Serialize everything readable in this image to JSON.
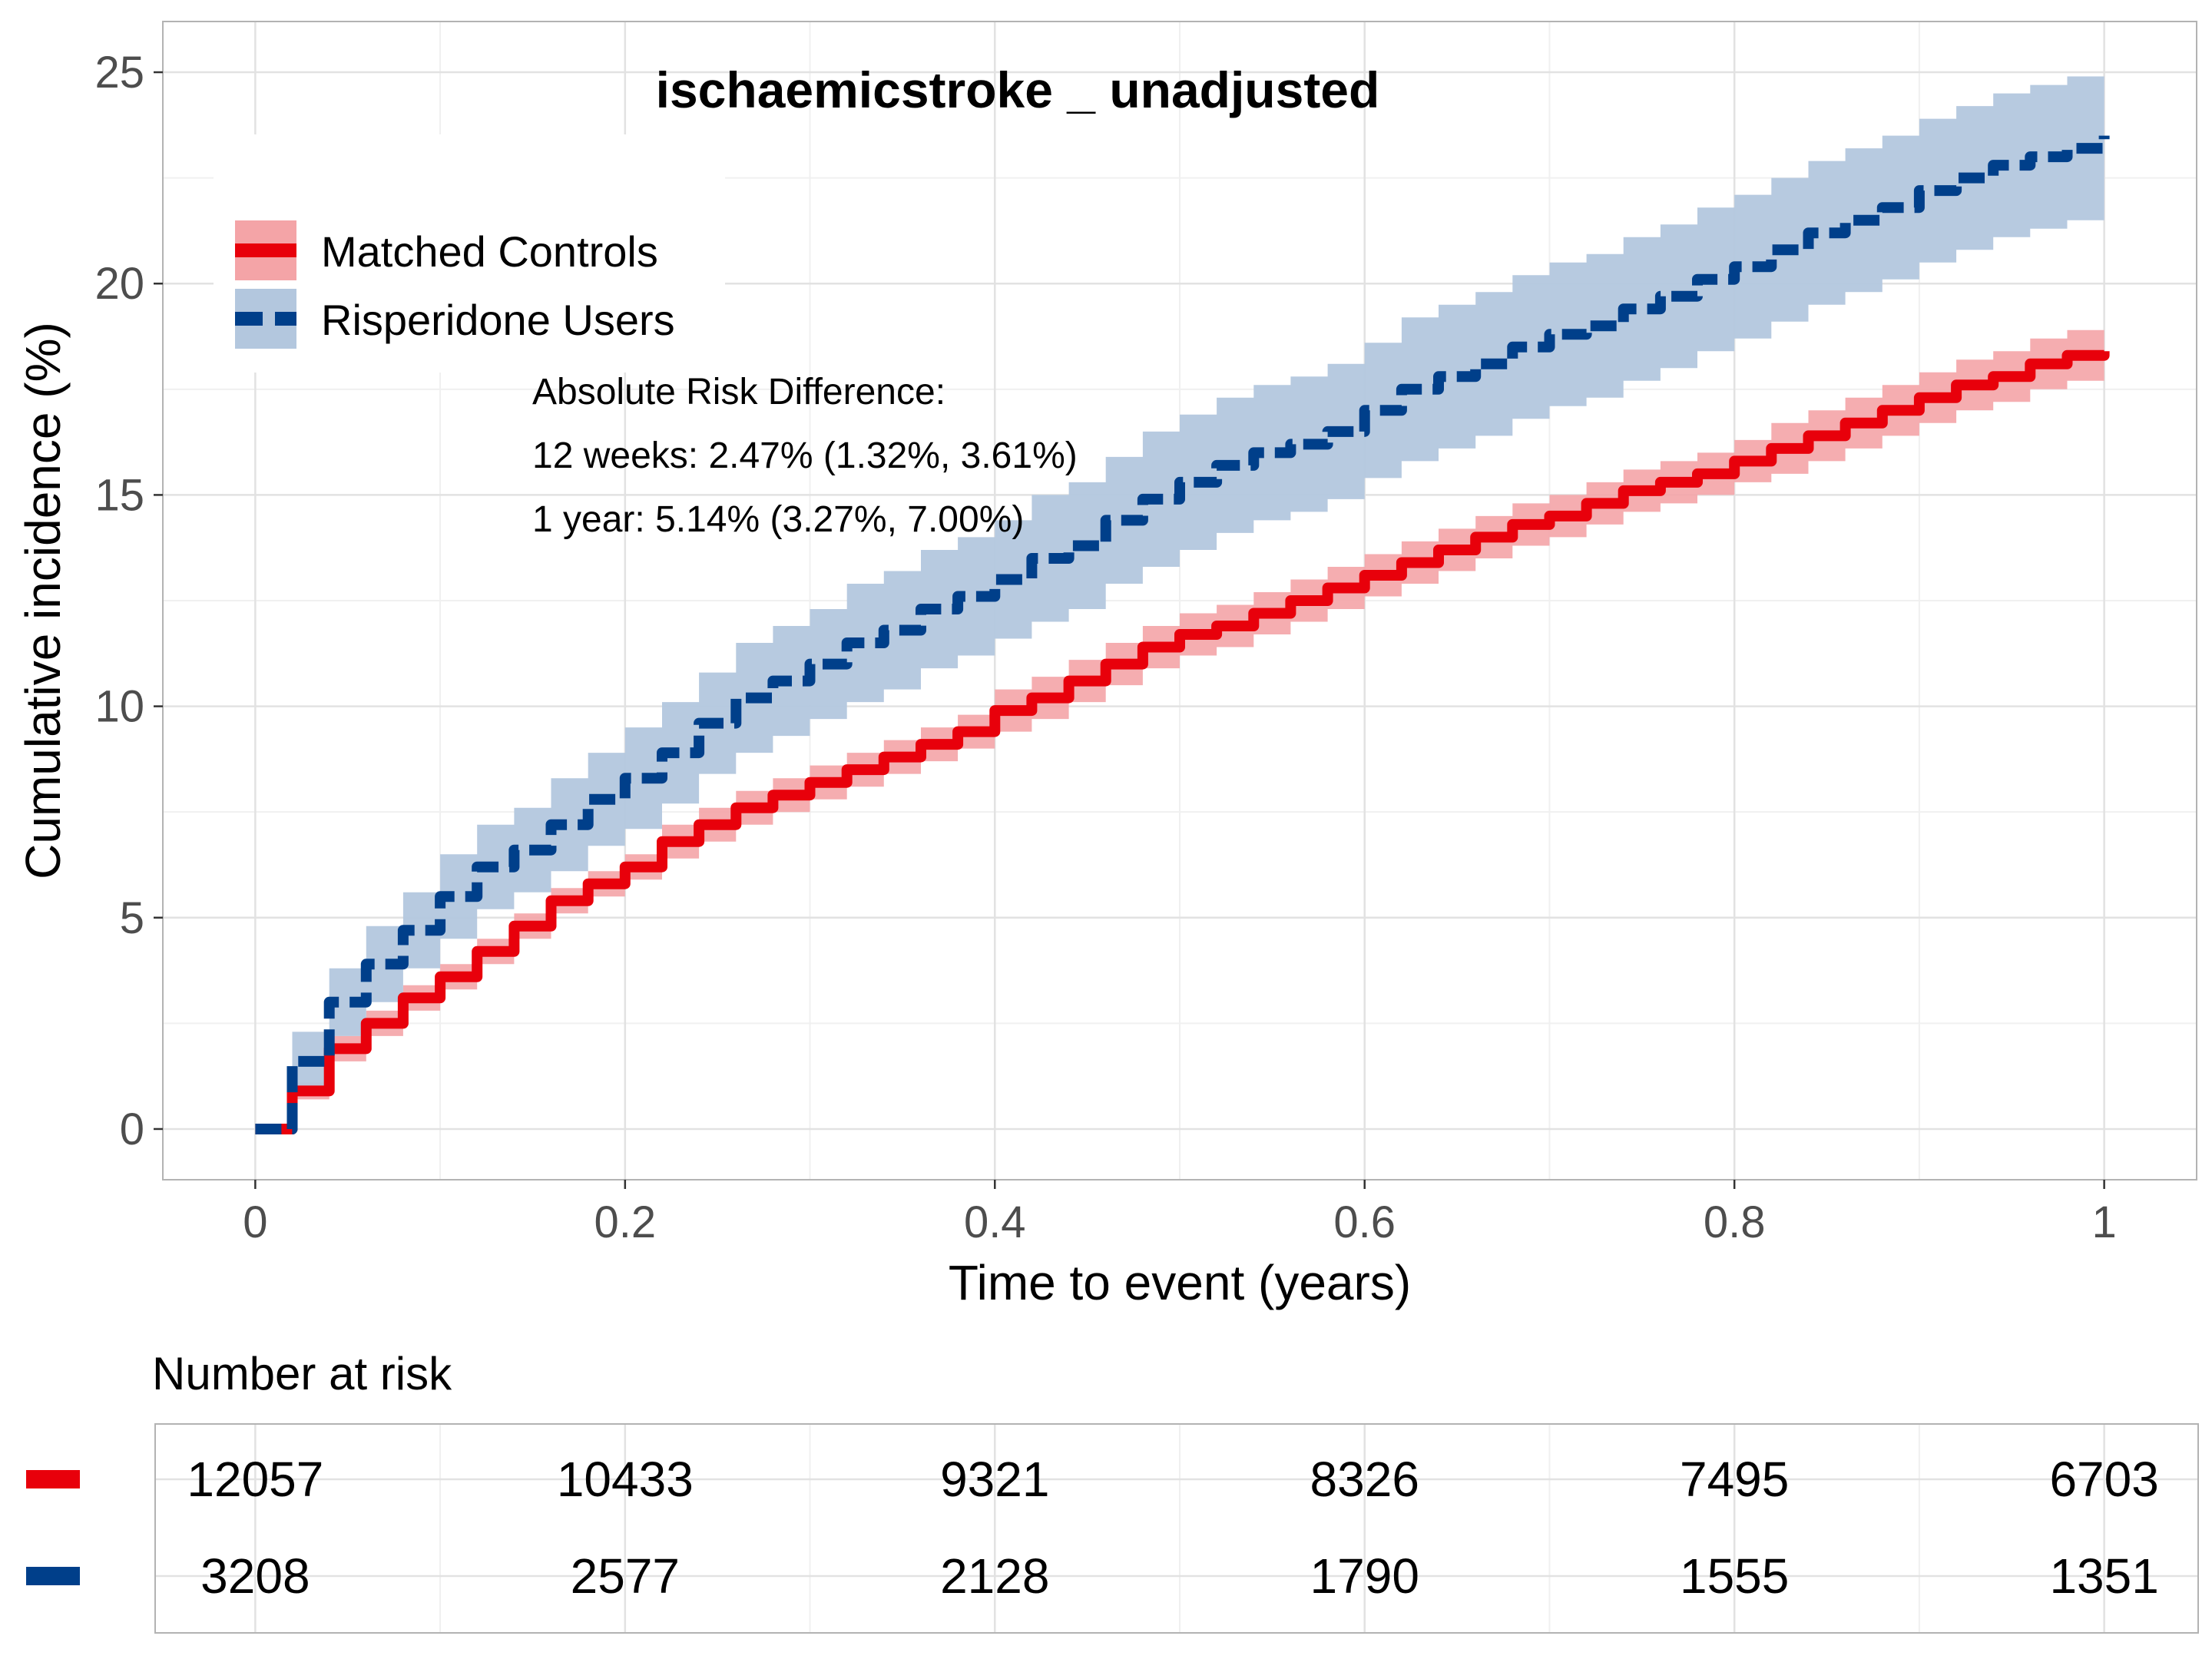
{
  "chart_data": {
    "type": "line",
    "title": "ischaemicstroke _ unadjusted",
    "xlabel": "Time to event (years)",
    "ylabel": "Cumulative incidence (%)",
    "xlim": [
      -0.05,
      1.05
    ],
    "ylim": [
      -1.2,
      26.2
    ],
    "x_ticks": [
      0,
      0.2,
      0.4,
      0.6,
      0.8,
      1
    ],
    "x_tick_labels": [
      "0",
      "0.2",
      "0.4",
      "0.6",
      "0.8",
      "1"
    ],
    "y_ticks": [
      0,
      5,
      10,
      15,
      20,
      25
    ],
    "y_tick_labels": [
      "0",
      "5",
      "10",
      "15",
      "20",
      "25"
    ],
    "grid": true,
    "legend_position": "top-left",
    "series": [
      {
        "name": "Matched Controls",
        "color": "#e8000b",
        "band_color": "#f4a4a7",
        "line_style": "solid",
        "x": [
          0,
          0.02,
          0.04,
          0.06,
          0.08,
          0.1,
          0.12,
          0.14,
          0.16,
          0.18,
          0.2,
          0.22,
          0.24,
          0.26,
          0.28,
          0.3,
          0.32,
          0.34,
          0.36,
          0.38,
          0.4,
          0.42,
          0.44,
          0.46,
          0.48,
          0.5,
          0.52,
          0.54,
          0.56,
          0.58,
          0.6,
          0.62,
          0.64,
          0.66,
          0.68,
          0.7,
          0.72,
          0.74,
          0.76,
          0.78,
          0.8,
          0.82,
          0.84,
          0.86,
          0.88,
          0.9,
          0.92,
          0.94,
          0.96,
          0.98,
          1.0
        ],
        "y": [
          0,
          0.9,
          1.9,
          2.5,
          3.1,
          3.6,
          4.2,
          4.8,
          5.4,
          5.8,
          6.2,
          6.8,
          7.2,
          7.6,
          7.9,
          8.2,
          8.5,
          8.8,
          9.1,
          9.4,
          9.9,
          10.2,
          10.6,
          11.0,
          11.4,
          11.7,
          11.9,
          12.2,
          12.5,
          12.8,
          13.1,
          13.4,
          13.7,
          14.0,
          14.3,
          14.5,
          14.8,
          15.1,
          15.3,
          15.5,
          15.8,
          16.1,
          16.4,
          16.7,
          17.0,
          17.3,
          17.6,
          17.8,
          18.1,
          18.3,
          18.4
        ],
        "lower": [
          0,
          0.7,
          1.6,
          2.2,
          2.8,
          3.3,
          3.9,
          4.5,
          5.1,
          5.5,
          5.9,
          6.4,
          6.8,
          7.2,
          7.5,
          7.8,
          8.1,
          8.4,
          8.7,
          9.0,
          9.4,
          9.7,
          10.1,
          10.5,
          10.9,
          11.2,
          11.4,
          11.7,
          12.0,
          12.3,
          12.6,
          12.9,
          13.2,
          13.5,
          13.8,
          14.0,
          14.3,
          14.6,
          14.8,
          15.0,
          15.3,
          15.5,
          15.8,
          16.1,
          16.4,
          16.7,
          17.0,
          17.2,
          17.5,
          17.7,
          17.8
        ],
        "upper": [
          0,
          1.1,
          2.2,
          2.8,
          3.4,
          3.9,
          4.5,
          5.1,
          5.7,
          6.1,
          6.5,
          7.2,
          7.6,
          8.0,
          8.3,
          8.6,
          8.9,
          9.2,
          9.5,
          9.8,
          10.4,
          10.7,
          11.1,
          11.5,
          11.9,
          12.2,
          12.4,
          12.7,
          13.0,
          13.3,
          13.6,
          13.9,
          14.2,
          14.5,
          14.8,
          15.0,
          15.3,
          15.6,
          15.8,
          16.0,
          16.3,
          16.7,
          17.0,
          17.3,
          17.6,
          17.9,
          18.2,
          18.4,
          18.7,
          18.9,
          19.0
        ]
      },
      {
        "name": "Risperidone Users",
        "color": "#003f8a",
        "band_color": "#b3c7de",
        "line_style": "dashed",
        "x": [
          0,
          0.02,
          0.04,
          0.06,
          0.08,
          0.1,
          0.12,
          0.14,
          0.16,
          0.18,
          0.2,
          0.22,
          0.24,
          0.26,
          0.28,
          0.3,
          0.32,
          0.34,
          0.36,
          0.38,
          0.4,
          0.42,
          0.44,
          0.46,
          0.48,
          0.5,
          0.52,
          0.54,
          0.56,
          0.58,
          0.6,
          0.62,
          0.64,
          0.66,
          0.68,
          0.7,
          0.72,
          0.74,
          0.76,
          0.78,
          0.8,
          0.82,
          0.84,
          0.86,
          0.88,
          0.9,
          0.92,
          0.94,
          0.96,
          0.98,
          1.0
        ],
        "y": [
          0,
          1.6,
          3.0,
          3.9,
          4.7,
          5.5,
          6.2,
          6.6,
          7.2,
          7.8,
          8.3,
          8.9,
          9.6,
          10.2,
          10.6,
          11.0,
          11.5,
          11.8,
          12.3,
          12.6,
          13.0,
          13.5,
          13.8,
          14.4,
          14.9,
          15.3,
          15.7,
          16.0,
          16.2,
          16.5,
          17.0,
          17.5,
          17.8,
          18.1,
          18.5,
          18.8,
          19.0,
          19.4,
          19.7,
          20.1,
          20.4,
          20.8,
          21.2,
          21.5,
          21.8,
          22.2,
          22.5,
          22.8,
          23.0,
          23.2,
          23.5
        ],
        "lower": [
          0,
          0.9,
          2.2,
          3.0,
          3.8,
          4.5,
          5.2,
          5.6,
          6.1,
          6.7,
          7.1,
          7.7,
          8.4,
          8.9,
          9.3,
          9.7,
          10.1,
          10.4,
          10.9,
          11.2,
          11.6,
          12.0,
          12.3,
          12.9,
          13.3,
          13.7,
          14.1,
          14.4,
          14.6,
          14.9,
          15.4,
          15.8,
          16.1,
          16.4,
          16.8,
          17.1,
          17.3,
          17.7,
          18.0,
          18.4,
          18.7,
          19.1,
          19.5,
          19.8,
          20.1,
          20.5,
          20.8,
          21.1,
          21.3,
          21.5,
          21.8
        ],
        "upper": [
          0,
          2.3,
          3.8,
          4.8,
          5.6,
          6.5,
          7.2,
          7.6,
          8.3,
          8.9,
          9.5,
          10.1,
          10.8,
          11.5,
          11.9,
          12.3,
          12.9,
          13.2,
          13.7,
          14.0,
          14.4,
          15.0,
          15.3,
          15.9,
          16.5,
          16.9,
          17.3,
          17.6,
          17.8,
          18.1,
          18.6,
          19.2,
          19.5,
          19.8,
          20.2,
          20.5,
          20.7,
          21.1,
          21.4,
          21.8,
          22.1,
          22.5,
          22.9,
          23.2,
          23.5,
          23.9,
          24.2,
          24.5,
          24.7,
          24.9,
          24.9
        ]
      }
    ],
    "annotation": {
      "lines": [
        "Absolute Risk Difference:",
        "12 weeks: 2.47% (1.32%, 3.61%)",
        "1 year: 5.14% (3.27%, 7.00%)"
      ]
    },
    "risk_table": {
      "title": "Number at risk",
      "rows": [
        {
          "color": "#e8000b",
          "values": [
            "12057",
            "10433",
            "9321",
            "8326",
            "7495",
            "6703"
          ]
        },
        {
          "color": "#003f8a",
          "values": [
            "3208",
            "2577",
            "2128",
            "1790",
            "1555",
            "1351"
          ]
        }
      ]
    }
  }
}
